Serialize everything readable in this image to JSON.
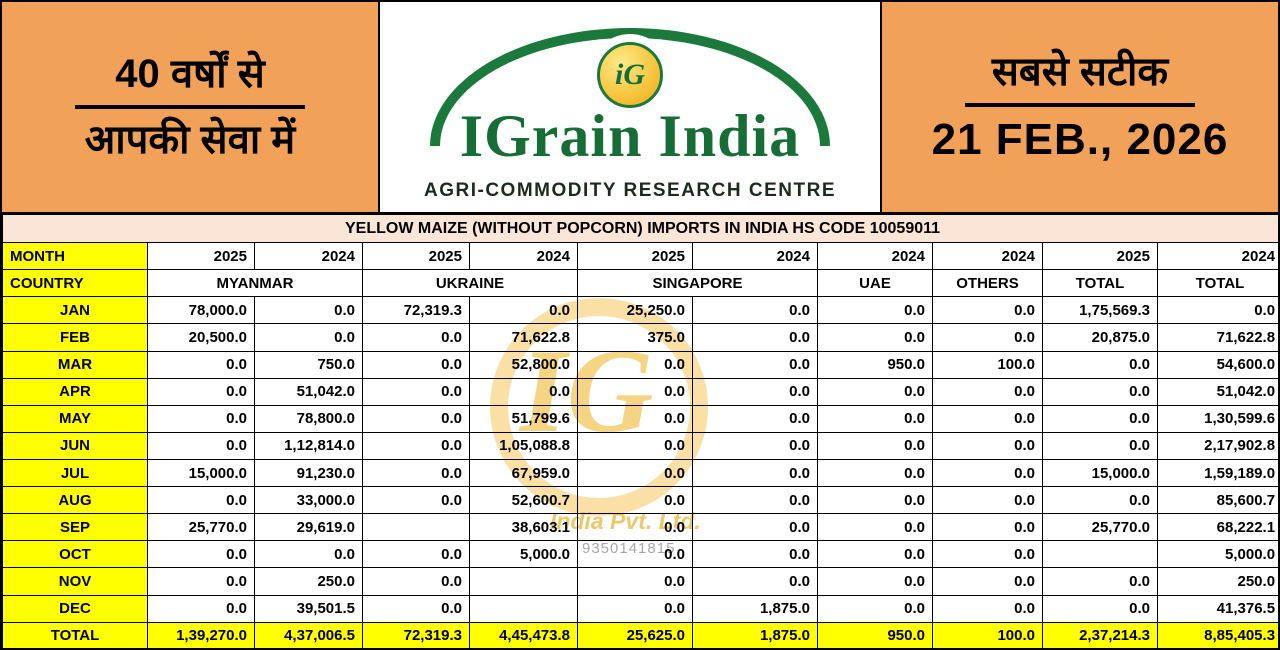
{
  "header": {
    "left": {
      "line1": "40 वर्षों से",
      "line2": "आपकी सेवा में"
    },
    "center": {
      "logo_monogram": "iG",
      "brand": "IGrain India",
      "tagline": "AGRI-COMMODITY RESEARCH CENTRE"
    },
    "right": {
      "line1": "सबसे सटीक",
      "date": "21 FEB., 2026"
    }
  },
  "table": {
    "title": "YELLOW MAIZE (WITHOUT POPCORN) IMPORTS IN INDIA HS CODE 10059011",
    "month_label": "MONTH",
    "country_label": "COUNTRY",
    "year_headers": [
      "2025",
      "2024",
      "2025",
      "2024",
      "2025",
      "2024",
      "2024",
      "2024",
      "2025",
      "2024"
    ],
    "country_headers": [
      {
        "label": "MYANMAR",
        "span": 2
      },
      {
        "label": "UKRAINE",
        "span": 2
      },
      {
        "label": "SINGAPORE",
        "span": 2
      },
      {
        "label": "UAE",
        "span": 1
      },
      {
        "label": "OTHERS",
        "span": 1
      },
      {
        "label": "TOTAL",
        "span": 1
      },
      {
        "label": "TOTAL",
        "span": 1
      }
    ],
    "rows": [
      {
        "month": "JAN",
        "values": [
          "78,000.0",
          "0.0",
          "72,319.3",
          "0.0",
          "25,250.0",
          "0.0",
          "0.0",
          "0.0",
          "1,75,569.3",
          "0.0"
        ]
      },
      {
        "month": "FEB",
        "values": [
          "20,500.0",
          "0.0",
          "0.0",
          "71,622.8",
          "375.0",
          "0.0",
          "0.0",
          "0.0",
          "20,875.0",
          "71,622.8"
        ]
      },
      {
        "month": "MAR",
        "values": [
          "0.0",
          "750.0",
          "0.0",
          "52,800.0",
          "0.0",
          "0.0",
          "950.0",
          "100.0",
          "0.0",
          "54,600.0"
        ]
      },
      {
        "month": "APR",
        "values": [
          "0.0",
          "51,042.0",
          "0.0",
          "0.0",
          "0.0",
          "0.0",
          "0.0",
          "0.0",
          "0.0",
          "51,042.0"
        ]
      },
      {
        "month": "MAY",
        "values": [
          "0.0",
          "78,800.0",
          "0.0",
          "51,799.6",
          "0.0",
          "0.0",
          "0.0",
          "0.0",
          "0.0",
          "1,30,599.6"
        ]
      },
      {
        "month": "JUN",
        "values": [
          "0.0",
          "1,12,814.0",
          "0.0",
          "1,05,088.8",
          "0.0",
          "0.0",
          "0.0",
          "0.0",
          "0.0",
          "2,17,902.8"
        ]
      },
      {
        "month": "JUL",
        "values": [
          "15,000.0",
          "91,230.0",
          "0.0",
          "67,959.0",
          "0.0",
          "0.0",
          "0.0",
          "0.0",
          "15,000.0",
          "1,59,189.0"
        ]
      },
      {
        "month": "AUG",
        "values": [
          "0.0",
          "33,000.0",
          "0.0",
          "52,600.7",
          "0.0",
          "0.0",
          "0.0",
          "0.0",
          "0.0",
          "85,600.7"
        ]
      },
      {
        "month": "SEP",
        "values": [
          "25,770.0",
          "29,619.0",
          "",
          "38,603.1",
          "0.0",
          "0.0",
          "0.0",
          "0.0",
          "25,770.0",
          "68,222.1"
        ]
      },
      {
        "month": "OCT",
        "values": [
          "0.0",
          "0.0",
          "0.0",
          "5,000.0",
          "0.0",
          "0.0",
          "0.0",
          "0.0",
          "",
          "5,000.0"
        ]
      },
      {
        "month": "NOV",
        "values": [
          "0.0",
          "250.0",
          "0.0",
          "",
          "0.0",
          "0.0",
          "0.0",
          "0.0",
          "0.0",
          "250.0"
        ]
      },
      {
        "month": "DEC",
        "values": [
          "0.0",
          "39,501.5",
          "0.0",
          "",
          "0.0",
          "1,875.0",
          "0.0",
          "0.0",
          "0.0",
          "41,376.5"
        ]
      }
    ],
    "total_row": {
      "month": "TOTAL",
      "values": [
        "1,39,270.0",
        "4,37,006.5",
        "72,319.3",
        "4,45,473.8",
        "25,625.0",
        "1,875.0",
        "950.0",
        "100.0",
        "2,37,214.3",
        "8,85,405.3"
      ]
    }
  },
  "watermark": {
    "monogram": "IG",
    "company": "India Pvt. Ltd.",
    "phone": "9350141815"
  },
  "colors": {
    "banner_orange": "#F2A159",
    "brand_green": "#176D36",
    "cell_yellow": "#FFFF00",
    "title_peach": "#FBE5D6",
    "watermark_gold": "#F3BB38"
  }
}
